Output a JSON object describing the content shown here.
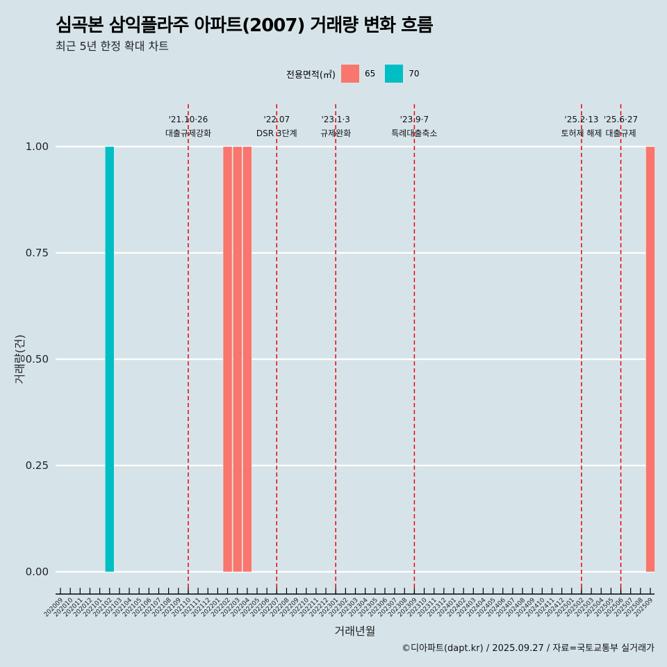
{
  "title": "심곡본 삼익플라주 아파트(2007) 거래량 변화 흐름",
  "subtitle": "최근 5년 한정 확대 차트",
  "caption": "©디아파트(dapt.kr) / 2025.09.27 / 자료=국토교통부 실거래가",
  "chart_data": {
    "type": "bar",
    "xlabel": "거래년월",
    "ylabel": "거래량(건)",
    "ylim": [
      0,
      1
    ],
    "yticks": [
      "0.00",
      "0.25",
      "0.50",
      "0.75",
      "1.00"
    ],
    "legend": {
      "title": "전용면적(㎡)",
      "position": "top",
      "entries": [
        {
          "name": "65",
          "color": "#F8766D"
        },
        {
          "name": "70",
          "color": "#00BFC4"
        }
      ]
    },
    "categories": [
      "202009",
      "202010",
      "202011",
      "202012",
      "202101",
      "202102",
      "202103",
      "202104",
      "202105",
      "202106",
      "202107",
      "202108",
      "202109",
      "202110",
      "202111",
      "202112",
      "202201",
      "202202",
      "202203",
      "202204",
      "202205",
      "202206",
      "202207",
      "202208",
      "202209",
      "202210",
      "202211",
      "202212",
      "202301",
      "202302",
      "202303",
      "202304",
      "202305",
      "202306",
      "202307",
      "202308",
      "202309",
      "202310",
      "202311",
      "202312",
      "202401",
      "202402",
      "202403",
      "202404",
      "202405",
      "202406",
      "202407",
      "202408",
      "202409",
      "202410",
      "202411",
      "202412",
      "202501",
      "202502",
      "202503",
      "202504",
      "202505",
      "202506",
      "202507",
      "202508",
      "202509"
    ],
    "bars": [
      {
        "x": "202102",
        "series": "70",
        "value": 1
      },
      {
        "x": "202202",
        "series": "65",
        "value": 1
      },
      {
        "x": "202203",
        "series": "65",
        "value": 1
      },
      {
        "x": "202204",
        "series": "65",
        "value": 1
      },
      {
        "x": "202509",
        "series": "65",
        "value": 1
      }
    ],
    "annotations": [
      {
        "x": "202110",
        "line1": "'21.10·26",
        "line2": "대출규제강화"
      },
      {
        "x": "202207",
        "line1": "'22.07",
        "line2": "DSR 3단계"
      },
      {
        "x": "202301",
        "line1": "'23.1·3",
        "line2": "규제완화"
      },
      {
        "x": "202309",
        "line1": "'23.9·7",
        "line2": "특례대출축소"
      },
      {
        "x": "202502",
        "line1": "'25.2·13",
        "line2": "토허제 해제"
      },
      {
        "x": "202506",
        "line1": "'25.6·27",
        "line2": "대출규제"
      }
    ]
  }
}
